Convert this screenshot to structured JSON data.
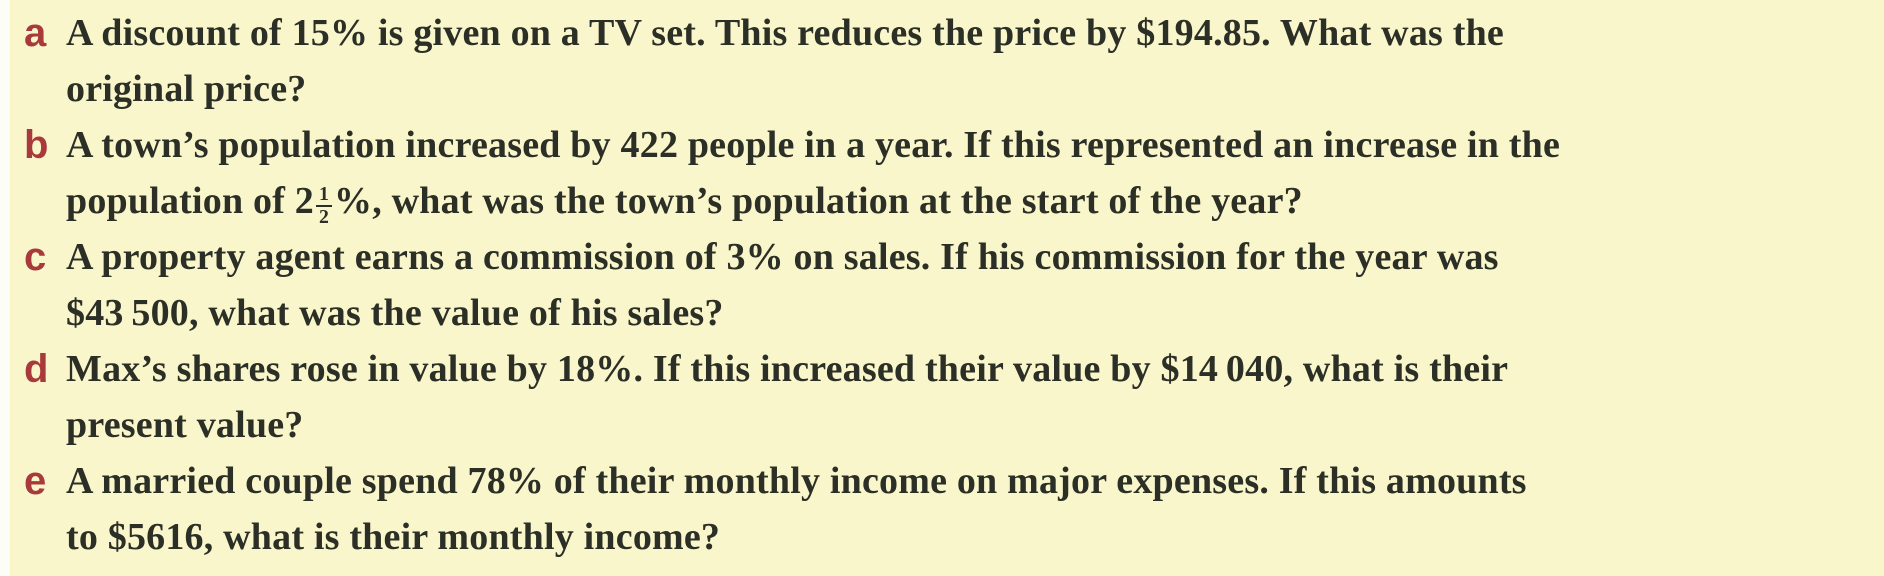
{
  "colors": {
    "background": "#faf6cc",
    "page_edge": "#fdfdf8",
    "item_letter": "#a93a3c",
    "body_text": "#2b2f26"
  },
  "problems": [
    {
      "letter": "a",
      "lines": [
        "A discount of 15% is given on a TV set. This reduces the price by $194.85. What was the",
        "original price?"
      ]
    },
    {
      "letter": "b",
      "lines": [
        "A town’s population increased by 422 people in a year. If this represented an increase in the"
      ],
      "line2": {
        "pre": "population of 2",
        "numerator": "1",
        "denominator": "2",
        "post": "%, what was the town’s population at the start of the year?"
      }
    },
    {
      "letter": "c",
      "lines": [
        "A property agent earns a commission of 3% on sales. If his commission for the year was",
        "$43 500, what was the value of his sales?"
      ]
    },
    {
      "letter": "d",
      "lines": [
        "Max’s shares rose in value by 18%. If this increased their value by $14 040, what is their",
        "present value?"
      ]
    },
    {
      "letter": "e",
      "lines": [
        "A married couple spend 78% of their monthly income on major expenses. If this amounts",
        "to $5616, what is their monthly income?"
      ]
    }
  ]
}
